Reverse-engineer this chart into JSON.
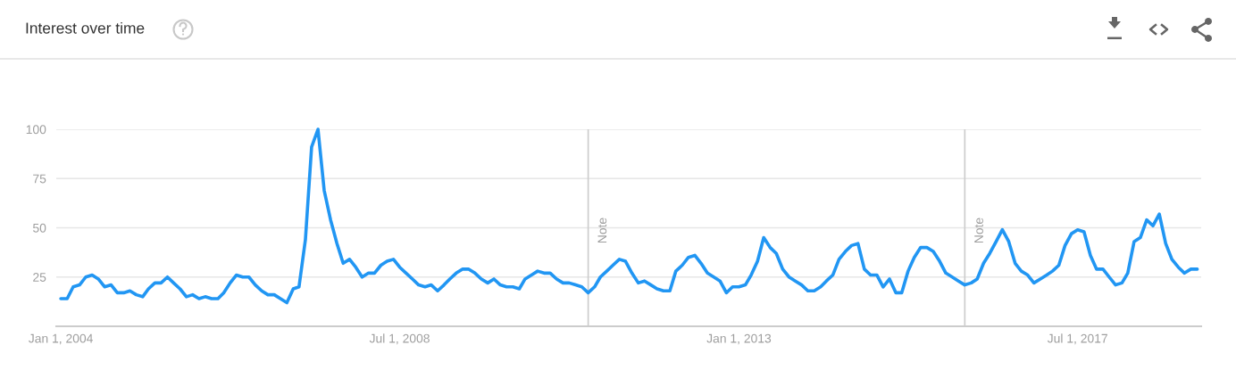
{
  "chart_data": {
    "type": "line",
    "title": "Interest over time",
    "x": [
      "2004-01",
      "2004-02",
      "2004-03",
      "2004-04",
      "2004-05",
      "2004-06",
      "2004-07",
      "2004-08",
      "2004-09",
      "2004-10",
      "2004-11",
      "2004-12",
      "2005-01",
      "2005-02",
      "2005-03",
      "2005-04",
      "2005-05",
      "2005-06",
      "2005-07",
      "2005-08",
      "2005-09",
      "2005-10",
      "2005-11",
      "2005-12",
      "2006-01",
      "2006-02",
      "2006-03",
      "2006-04",
      "2006-05",
      "2006-06",
      "2006-07",
      "2006-08",
      "2006-09",
      "2006-10",
      "2006-11",
      "2006-12",
      "2007-01",
      "2007-02",
      "2007-03",
      "2007-04",
      "2007-05",
      "2007-06",
      "2007-07",
      "2007-08",
      "2007-09",
      "2007-10",
      "2007-11",
      "2007-12",
      "2008-01",
      "2008-02",
      "2008-03",
      "2008-04",
      "2008-05",
      "2008-06",
      "2008-07",
      "2008-08",
      "2008-09",
      "2008-10",
      "2008-11",
      "2008-12",
      "2009-01",
      "2009-02",
      "2009-03",
      "2009-04",
      "2009-05",
      "2009-06",
      "2009-07",
      "2009-08",
      "2009-09",
      "2009-10",
      "2009-11",
      "2009-12",
      "2010-01",
      "2010-02",
      "2010-03",
      "2010-04",
      "2010-05",
      "2010-06",
      "2010-07",
      "2010-08",
      "2010-09",
      "2010-10",
      "2010-11",
      "2010-12",
      "2011-01",
      "2011-02",
      "2011-03",
      "2011-04",
      "2011-05",
      "2011-06",
      "2011-07",
      "2011-08",
      "2011-09",
      "2011-10",
      "2011-11",
      "2011-12",
      "2012-01",
      "2012-02",
      "2012-03",
      "2012-04",
      "2012-05",
      "2012-06",
      "2012-07",
      "2012-08",
      "2012-09",
      "2012-10",
      "2012-11",
      "2012-12",
      "2013-01",
      "2013-02",
      "2013-03",
      "2013-04",
      "2013-05",
      "2013-06",
      "2013-07",
      "2013-08",
      "2013-09",
      "2013-10",
      "2013-11",
      "2013-12",
      "2014-01",
      "2014-02",
      "2014-03",
      "2014-04",
      "2014-05",
      "2014-06",
      "2014-07",
      "2014-08",
      "2014-09",
      "2014-10",
      "2014-11",
      "2014-12",
      "2015-01",
      "2015-02",
      "2015-03",
      "2015-04",
      "2015-05",
      "2015-06",
      "2015-07",
      "2015-08",
      "2015-09",
      "2015-10",
      "2015-11",
      "2015-12",
      "2016-01",
      "2016-02",
      "2016-03",
      "2016-04",
      "2016-05",
      "2016-06",
      "2016-07",
      "2016-08",
      "2016-09",
      "2016-10",
      "2016-11",
      "2016-12",
      "2017-01",
      "2017-02",
      "2017-03",
      "2017-04",
      "2017-05",
      "2017-06",
      "2017-07",
      "2017-08",
      "2017-09",
      "2017-10",
      "2017-11",
      "2017-12",
      "2018-01",
      "2018-02",
      "2018-03",
      "2018-04",
      "2018-05",
      "2018-06",
      "2018-07",
      "2018-08",
      "2018-09",
      "2018-10",
      "2018-11",
      "2018-12",
      "2019-01",
      "2019-02"
    ],
    "series": [
      {
        "color": "#2196f3",
        "values": [
          14,
          14,
          20,
          21,
          25,
          26,
          24,
          20,
          21,
          17,
          17,
          18,
          16,
          15,
          19,
          22,
          22,
          25,
          22,
          19,
          15,
          16,
          14,
          15,
          14,
          14,
          17,
          22,
          26,
          25,
          25,
          21,
          18,
          16,
          16,
          14,
          12,
          19,
          20,
          44,
          91,
          100,
          69,
          54,
          42,
          32,
          34,
          30,
          25,
          27,
          27,
          31,
          33,
          34,
          30,
          27,
          24,
          21,
          20,
          21,
          18,
          21,
          24,
          27,
          29,
          29,
          27,
          24,
          22,
          24,
          21,
          20,
          20,
          19,
          24,
          26,
          28,
          27,
          27,
          24,
          22,
          22,
          21,
          20,
          17,
          20,
          25,
          28,
          31,
          34,
          33,
          27,
          22,
          23,
          21,
          19,
          18,
          18,
          28,
          31,
          35,
          36,
          32,
          27,
          25,
          23,
          17,
          20,
          20,
          21,
          26,
          33,
          45,
          40,
          37,
          29,
          25,
          23,
          21,
          18,
          18,
          20,
          23,
          26,
          34,
          38,
          41,
          42,
          29,
          26,
          26,
          20,
          24,
          17,
          17,
          28,
          35,
          40,
          40,
          38,
          33,
          27,
          25,
          23,
          21,
          22,
          24,
          32,
          37,
          43,
          49,
          43,
          32,
          28,
          26,
          22,
          24,
          26,
          28,
          31,
          41,
          47,
          49,
          48,
          36,
          29,
          29,
          25,
          21,
          22,
          27,
          43,
          45,
          54,
          51,
          57,
          42,
          34,
          30,
          27,
          29,
          29
        ]
      }
    ],
    "xlim": [
      "2003-12-10",
      "2019-02-20"
    ],
    "ylim": [
      0,
      100
    ],
    "xticks": [
      {
        "value": "2004-01-01",
        "label": "Jan 1, 2004"
      },
      {
        "value": "2008-07-01",
        "label": "Jul 1, 2008"
      },
      {
        "value": "2013-01-01",
        "label": "Jan 1, 2013"
      },
      {
        "value": "2017-07-01",
        "label": "Jul 1, 2017"
      }
    ],
    "yticks": [
      25,
      50,
      75,
      100
    ],
    "grid": "y",
    "ref_lines": [
      {
        "axis": "x",
        "value": "2011-01-01",
        "label": "Note",
        "color": "#cccccc"
      },
      {
        "axis": "x",
        "value": "2016-01-01",
        "label": "Note",
        "color": "#cccccc"
      }
    ],
    "marker": "none",
    "line_style": "solid"
  }
}
